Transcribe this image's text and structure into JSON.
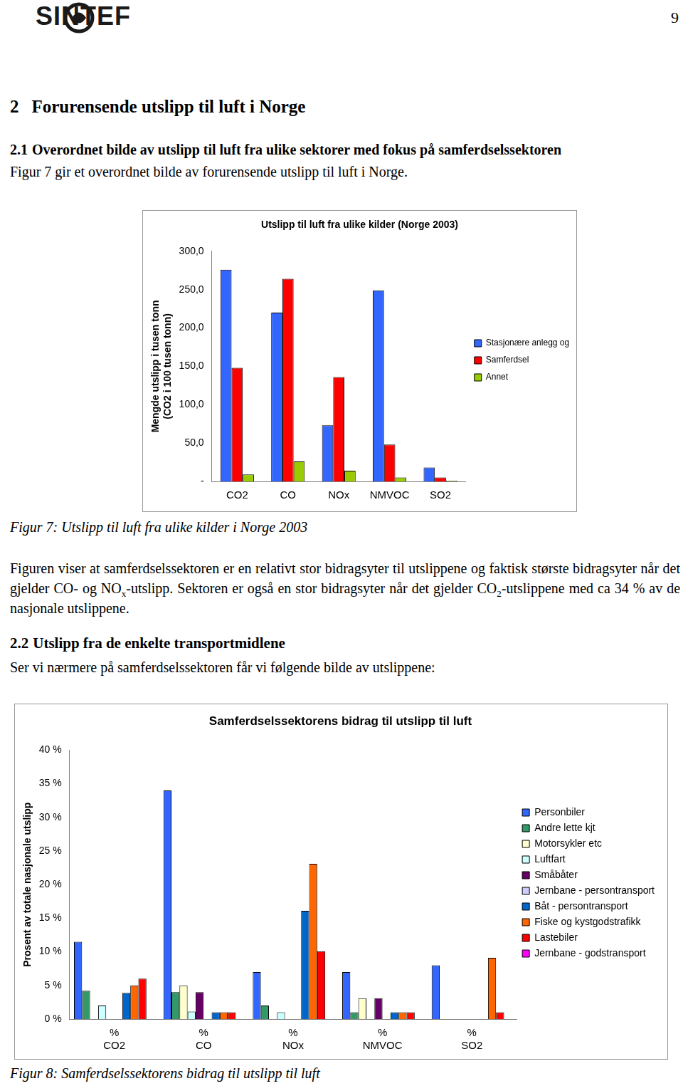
{
  "header": {
    "logo": "SINTEF",
    "page": "9"
  },
  "heading_1": {
    "number": "2",
    "text": "Forurensende utslipp til luft i Norge"
  },
  "heading_2_1": {
    "number": "2.1",
    "text": "Overordnet bilde av utslipp til luft fra ulike sektorer med fokus på samferdselssektoren"
  },
  "intro_1": "Figur 7 gir et overordnet bilde av forurensende utslipp til luft i Norge.",
  "caption_1": "Figur 7: Utslipp til luft fra ulike kilder i Norge 2003",
  "paragraph_1": [
    "Figuren viser at samferdselssektoren er en relativt stor bidragsyter til utslippene og faktisk største bidragsyter når det gjelder CO- og NO",
    {
      "sub": "x"
    },
    "-utslipp. Sektoren er også en stor bidragsyter når det gjelder CO",
    {
      "sub": "2"
    },
    "-utslippene med ca 34 % av de nasjonale utslippene."
  ],
  "heading_2_2": {
    "number": "2.2",
    "text": "Utslipp fra de enkelte transportmidlene"
  },
  "intro_2": "Ser vi nærmere på samferdselssektoren får vi følgende bilde av utslippene:",
  "caption_2": "Figur 8: Samferdselssektorens bidrag til utslipp til luft",
  "chart_data": [
    {
      "type": "bar",
      "title": "Utslipp til luft fra ulike kilder (Norge 2003)",
      "ylabel": [
        "Mengde utslipp i tusen tonn",
        "(CO2 i 100 tusen tonn)"
      ],
      "categories": [
        "CO2",
        "CO",
        "NOx",
        "NMVOC",
        "SO2"
      ],
      "series": [
        {
          "name": "Stasjonære anlegg og prosessutslipp",
          "color": "#3366ff",
          "values": [
            276,
            220,
            73,
            249,
            18
          ]
        },
        {
          "name": "Samferdsel",
          "color": "#ff0000",
          "values": [
            148,
            264,
            136,
            48,
            5
          ]
        },
        {
          "name": "Annet",
          "color": "#99cc00",
          "values": [
            9,
            26,
            14,
            5,
            1
          ]
        }
      ],
      "ylim": [
        0,
        300
      ],
      "yticks": [
        {
          "value": 0,
          "label": "-"
        },
        {
          "value": 50,
          "label": "50,0"
        },
        {
          "value": 100,
          "label": "100,0"
        },
        {
          "value": 150,
          "label": "150,0"
        },
        {
          "value": 200,
          "label": "200,0"
        },
        {
          "value": 250,
          "label": "250,0"
        },
        {
          "value": 300,
          "label": "300,0"
        }
      ],
      "grid": false,
      "legend": "right"
    },
    {
      "type": "bar",
      "title": "Samferdselssektorens bidrag til utslipp til luft",
      "ylabel": "Prosent av totale nasjonale utslipp",
      "categories": [
        [
          "%",
          "CO2"
        ],
        [
          "%",
          "CO"
        ],
        [
          "%",
          "NOx"
        ],
        [
          "%",
          "NMVOC"
        ],
        [
          "%",
          "SO2"
        ]
      ],
      "series": [
        {
          "name": "Personbiler",
          "color": "#3366ff",
          "values": [
            11.5,
            34,
            7,
            7,
            8
          ]
        },
        {
          "name": "Andre lette kjt",
          "color": "#339966",
          "values": [
            4.2,
            4,
            2,
            1,
            0
          ]
        },
        {
          "name": "Motorsykler etc",
          "color": "#ffffcc",
          "values": [
            0,
            5,
            0,
            3.1,
            0
          ]
        },
        {
          "name": "Luftfart",
          "color": "#ccffff",
          "values": [
            2,
            1.1,
            1,
            0,
            0
          ]
        },
        {
          "name": "Småbåter",
          "color": "#660066",
          "values": [
            0,
            4,
            0,
            3.1,
            0
          ]
        },
        {
          "name": "Jernbane - persontransport",
          "color": "#ccccff",
          "values": [
            0,
            0,
            0,
            0,
            0
          ]
        },
        {
          "name": "Båt - persontransport",
          "color": "#0066cc",
          "values": [
            3.9,
            1,
            16.1,
            1,
            0
          ]
        },
        {
          "name": "Fiske og kystgodstrafikk",
          "color": "#ff6600",
          "values": [
            5,
            1,
            23.1,
            1,
            9.1
          ]
        },
        {
          "name": "Lastebiler",
          "color": "#ff0000",
          "values": [
            6,
            1,
            10.1,
            1,
            1
          ]
        },
        {
          "name": "Jernbane - godstransport",
          "color": "#ff00ff",
          "values": [
            0,
            0,
            0,
            0,
            0
          ]
        }
      ],
      "ylim": [
        0,
        40
      ],
      "yticks": [
        {
          "value": 0,
          "label": "0 %"
        },
        {
          "value": 5,
          "label": "5 %"
        },
        {
          "value": 10,
          "label": "10 %"
        },
        {
          "value": 15,
          "label": "15 %"
        },
        {
          "value": 20,
          "label": "20 %"
        },
        {
          "value": 25,
          "label": "25 %"
        },
        {
          "value": 30,
          "label": "30 %"
        },
        {
          "value": 35,
          "label": "35 %"
        },
        {
          "value": 40,
          "label": "40 %"
        }
      ],
      "grid": false,
      "legend": "right"
    }
  ]
}
